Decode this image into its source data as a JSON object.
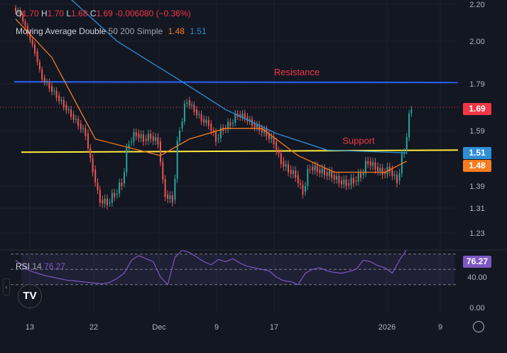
{
  "ohlc": {
    "o_label": "O",
    "o": "1.70",
    "h_label": "H",
    "h": "1.70",
    "l_label": "L",
    "l": "1.68",
    "c_label": "C",
    "c": "1.69",
    "change": "-0.006080 (−0.36%)"
  },
  "ma": {
    "name": "Moving Average Double",
    "params": "50 200 Simple",
    "fast": "1.48",
    "slow": "1.51",
    "fast_color": "#f57c20",
    "slow_color": "#2e8fd6"
  },
  "rsi": {
    "name": "RSI",
    "period": "14",
    "value": "76.27",
    "color": "#7e57c2"
  },
  "price_tags": {
    "last": "1.69",
    "slow": "1.51",
    "fast": "1.48"
  },
  "chart_data": {
    "type": "candlestick",
    "x_start": "2025-11-11",
    "price_ticks": [
      2.2,
      2.0,
      1.79,
      1.59,
      1.39,
      1.31,
      1.23
    ],
    "x_ticks": [
      "13",
      "22",
      "Dec",
      "9",
      "17",
      "2026",
      "9"
    ],
    "closes": [
      2.15,
      2.05,
      1.95,
      1.82,
      1.78,
      1.74,
      1.7,
      1.66,
      1.62,
      1.58,
      1.45,
      1.34,
      1.33,
      1.36,
      1.4,
      1.55,
      1.58,
      1.56,
      1.57,
      1.55,
      1.36,
      1.34,
      1.6,
      1.72,
      1.68,
      1.64,
      1.62,
      1.56,
      1.6,
      1.62,
      1.66,
      1.65,
      1.62,
      1.6,
      1.58,
      1.55,
      1.48,
      1.45,
      1.43,
      1.37,
      1.46,
      1.45,
      1.44,
      1.43,
      1.41,
      1.4,
      1.41,
      1.43,
      1.48,
      1.46,
      1.44,
      1.45,
      1.41,
      1.52,
      1.69
    ],
    "ma_fast": [
      [
        0,
        2.12
      ],
      [
        5,
        1.92
      ],
      [
        11,
        1.56
      ],
      [
        20,
        1.5
      ],
      [
        24,
        1.56
      ],
      [
        29,
        1.6
      ],
      [
        34,
        1.6
      ],
      [
        39,
        1.5
      ],
      [
        44,
        1.44
      ],
      [
        51,
        1.44
      ],
      [
        54,
        1.48
      ]
    ],
    "ma_slow": [
      [
        7,
        2.25
      ],
      [
        14,
        2.0
      ],
      [
        23,
        1.8
      ],
      [
        29,
        1.68
      ],
      [
        36,
        1.58
      ],
      [
        43,
        1.52
      ],
      [
        54,
        1.51
      ]
    ],
    "annotations": [
      {
        "label": "Resistance",
        "price": 1.8,
        "color": "#2962ff"
      },
      {
        "label": "Support",
        "price": 1.52,
        "color": "#ffeb3b"
      }
    ],
    "rsi_values": [
      62,
      55,
      48,
      45,
      42,
      40,
      38,
      36,
      35,
      34,
      33,
      32,
      31,
      33,
      38,
      45,
      62,
      68,
      64,
      60,
      40,
      30,
      66,
      75,
      72,
      66,
      60,
      56,
      63,
      60,
      64,
      58,
      54,
      52,
      50,
      48,
      40,
      35,
      34,
      30,
      45,
      50,
      52,
      48,
      46,
      45,
      47,
      50,
      62,
      60,
      55,
      52,
      45,
      62,
      76
    ],
    "rsi_ticks": [
      40.0,
      0.0
    ],
    "rsi_levels": [
      70,
      50,
      30
    ]
  }
}
